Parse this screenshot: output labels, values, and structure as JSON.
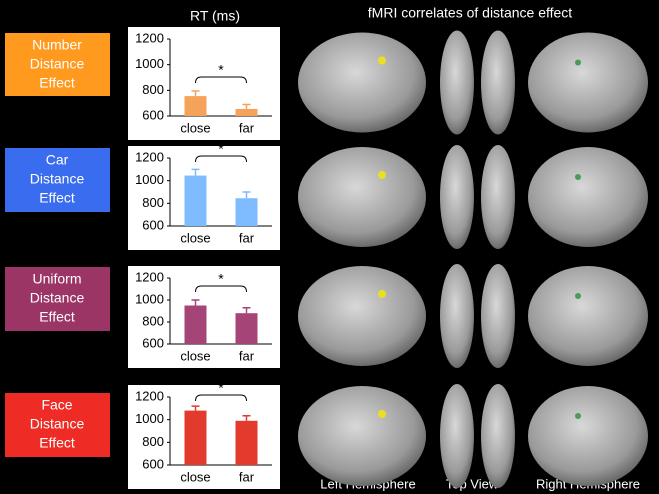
{
  "title": "fMRI correlates of distance effect",
  "view_labels": [
    "Left Hemisphere",
    "Top View",
    "Right Hemisphere"
  ],
  "conditions": [
    {
      "lines": [
        "Number",
        "Distance",
        "Effect"
      ],
      "color": "#ff9a1e"
    },
    {
      "lines": [
        "Car",
        "Distance",
        "Effect"
      ],
      "color": "#3a6cf0"
    },
    {
      "lines": [
        "Uniform",
        "Distance",
        "Effect"
      ],
      "color": "#9b3566"
    },
    {
      "lines": [
        "Face",
        "Distance",
        "Effect"
      ],
      "color": "#ee2b24"
    }
  ],
  "chart_data": [
    {
      "type": "bar",
      "title": "RT (ms)",
      "categories": [
        "close",
        "far"
      ],
      "values": [
        755,
        655
      ],
      "errors": [
        40,
        35
      ],
      "color": "#f5a25a",
      "annotation": "*",
      "ylim": [
        600,
        1200
      ],
      "yticks": [
        600,
        800,
        1000,
        1200
      ]
    },
    {
      "type": "bar",
      "categories": [
        "close",
        "far"
      ],
      "values": [
        1045,
        845
      ],
      "errors": [
        55,
        55
      ],
      "color": "#7fbcff",
      "annotation": "*",
      "ylim": [
        600,
        1200
      ],
      "yticks": [
        600,
        800,
        1000,
        1200
      ]
    },
    {
      "type": "bar",
      "categories": [
        "close",
        "far"
      ],
      "values": [
        950,
        880
      ],
      "errors": [
        50,
        50
      ],
      "color": "#a54477",
      "annotation": "*",
      "ylim": [
        600,
        1200
      ],
      "yticks": [
        600,
        800,
        1000,
        1200
      ]
    },
    {
      "type": "bar",
      "categories": [
        "close",
        "far"
      ],
      "values": [
        1080,
        990
      ],
      "errors": [
        40,
        45
      ],
      "color": "#e23a2c",
      "annotation": "*",
      "ylim": [
        600,
        1200
      ],
      "yticks": [
        600,
        800,
        1000,
        1200
      ]
    }
  ]
}
